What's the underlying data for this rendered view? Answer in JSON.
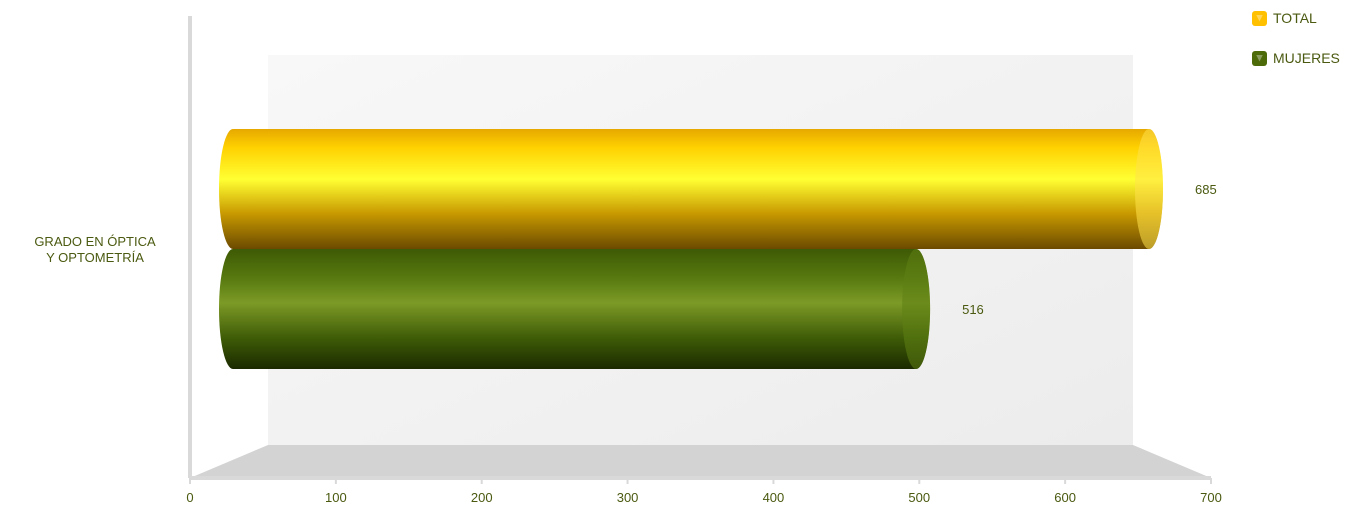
{
  "chart_data": {
    "type": "bar",
    "orientation": "horizontal",
    "categories": [
      "GRADO EN ÓPTICA Y OPTOMETRÍA"
    ],
    "series": [
      {
        "name": "TOTAL",
        "values": [
          685
        ],
        "color": "#ffcc00"
      },
      {
        "name": "MUJERES",
        "values": [
          516
        ],
        "color": "#4e6b0a"
      }
    ],
    "xlim": [
      0,
      700
    ],
    "xticks": [
      0,
      100,
      200,
      300,
      400,
      500,
      600,
      700
    ],
    "title": "",
    "xlabel": "",
    "ylabel": "",
    "legend_position": "top-right",
    "grid": false
  }
}
